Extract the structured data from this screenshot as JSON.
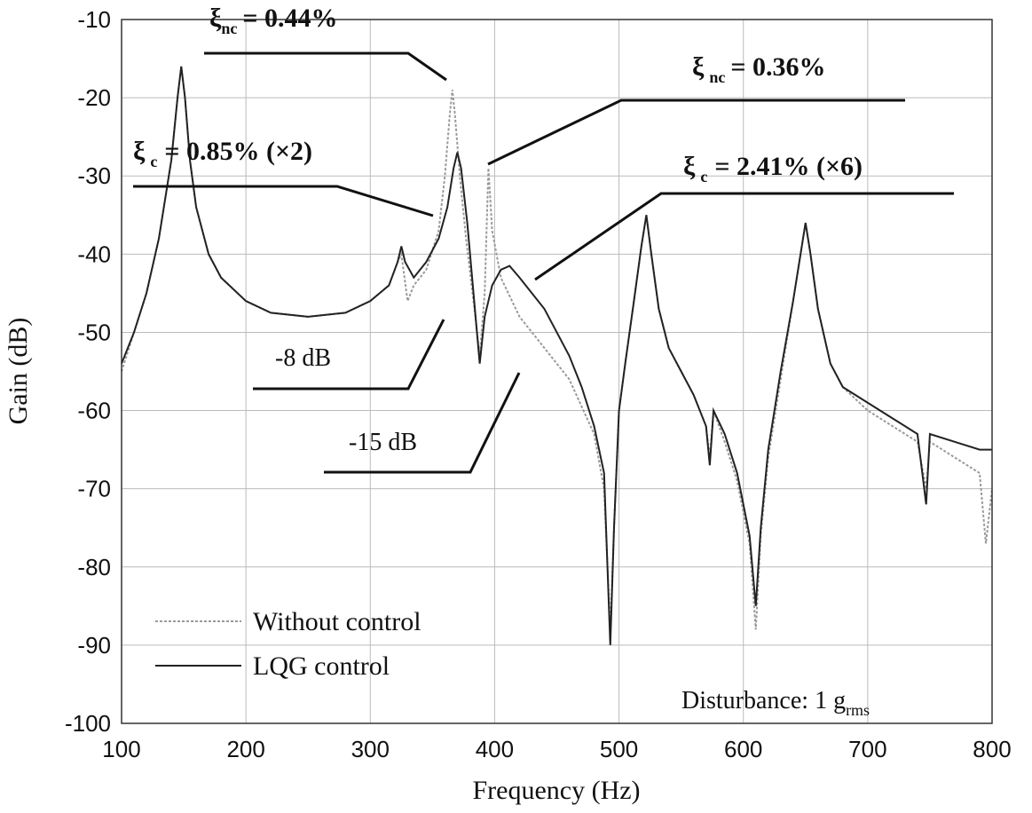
{
  "chart_data": {
    "type": "line",
    "x_label": "Frequency (Hz)",
    "y_label": "Gain (dB)",
    "xlim": [
      100,
      800
    ],
    "ylim": [
      -100,
      -10
    ],
    "xticks": [
      100,
      200,
      300,
      400,
      500,
      600,
      700,
      800
    ],
    "yticks": [
      -100,
      -90,
      -80,
      -70,
      -60,
      -50,
      -40,
      -30,
      -20,
      -10
    ],
    "grid": true,
    "series": [
      {
        "name": "Without control",
        "color": "#9a9a9a",
        "linestyle": "dotted",
        "x": [
          100,
          110,
          120,
          130,
          140,
          145,
          148,
          151,
          155,
          160,
          170,
          180,
          200,
          220,
          250,
          280,
          300,
          315,
          322,
          325,
          330,
          335,
          345,
          355,
          360,
          364,
          366,
          368,
          372,
          377,
          383,
          388,
          392,
          395,
          398,
          405,
          420,
          440,
          460,
          480,
          488,
          493,
          496,
          500,
          505,
          512,
          518,
          522,
          526,
          532,
          540,
          550,
          560,
          570,
          573,
          576,
          585,
          595,
          605,
          610,
          614,
          620,
          630,
          640,
          646,
          650,
          654,
          660,
          670,
          680,
          700,
          720,
          740,
          747,
          750,
          770,
          790,
          795,
          800
        ],
        "values": [
          -55,
          -50,
          -45,
          -38,
          -28,
          -20,
          -16,
          -20,
          -28,
          -34,
          -40,
          -43,
          -46,
          -47.5,
          -48,
          -47.5,
          -46,
          -44,
          -41,
          -40,
          -46,
          -44,
          -42,
          -37,
          -30,
          -22,
          -19,
          -22,
          -30,
          -38,
          -46,
          -53,
          -45,
          -29,
          -37,
          -43,
          -48,
          -52,
          -56,
          -63,
          -70,
          -88,
          -75,
          -60,
          -54,
          -46,
          -39,
          -35,
          -40,
          -47,
          -52,
          -55,
          -58,
          -62,
          -66,
          -60,
          -64,
          -69,
          -77,
          -88,
          -76,
          -66,
          -56,
          -46,
          -40,
          -36,
          -40,
          -47,
          -54,
          -57,
          -60,
          -62,
          -64,
          -70,
          -64,
          -66,
          -68,
          -77,
          -70
        ]
      },
      {
        "name": "LQG control",
        "color": "#222222",
        "linestyle": "solid",
        "x": [
          100,
          110,
          120,
          130,
          140,
          145,
          148,
          151,
          155,
          160,
          170,
          180,
          200,
          220,
          250,
          280,
          300,
          315,
          322,
          325,
          328,
          335,
          345,
          355,
          362,
          367,
          370,
          373,
          378,
          383,
          388,
          392,
          398,
          405,
          412,
          420,
          430,
          440,
          450,
          460,
          470,
          480,
          488,
          493,
          496,
          500,
          505,
          512,
          518,
          522,
          526,
          532,
          540,
          550,
          560,
          570,
          573,
          576,
          585,
          595,
          605,
          610,
          614,
          620,
          630,
          640,
          646,
          650,
          654,
          660,
          670,
          680,
          700,
          720,
          740,
          747,
          750,
          770,
          790,
          800
        ],
        "values": [
          -54,
          -50,
          -45,
          -38,
          -28,
          -20,
          -16,
          -20,
          -28,
          -34,
          -40,
          -43,
          -46,
          -47.5,
          -48,
          -47.5,
          -46,
          -44,
          -41,
          -39,
          -41,
          -43,
          -41,
          -38,
          -34,
          -29,
          -27,
          -29,
          -36,
          -45,
          -54,
          -48,
          -44,
          -42,
          -41.5,
          -43,
          -45,
          -47,
          -50,
          -53,
          -57,
          -62,
          -68,
          -90,
          -75,
          -60,
          -54,
          -46,
          -39,
          -35,
          -40,
          -47,
          -52,
          -55,
          -58,
          -62,
          -67,
          -60,
          -63,
          -68,
          -76,
          -85,
          -75,
          -65,
          -55,
          -46,
          -40,
          -36,
          -40,
          -47,
          -54,
          -57,
          -59,
          -61,
          -63,
          -72,
          -63,
          -64,
          -65,
          -65
        ]
      }
    ],
    "annotations": [
      {
        "symbol": "ξ",
        "subscript": "nc",
        "text": "= 0.44%"
      },
      {
        "symbol": "ξ",
        "subscript": "nc",
        "text": "= 0.36%"
      },
      {
        "symbol": "ξ",
        "subscript": "c",
        "text": "= 0.85% (×2)"
      },
      {
        "symbol": "ξ",
        "subscript": "c",
        "text": "= 2.41% (×6)"
      },
      {
        "text": "-8 dB"
      },
      {
        "text": "-15 dB"
      },
      {
        "text": "Disturbance: 1 g",
        "subscript": "rms"
      }
    ]
  }
}
